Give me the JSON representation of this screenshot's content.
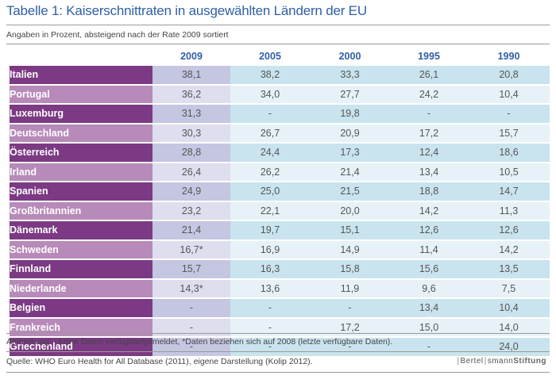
{
  "title": "Tabelle 1: Kaiserschnittraten in ausgewählten Ländern der EU",
  "subtitle": "Angaben in Prozent, absteigend nach der Rate 2009 sortiert",
  "note": "Anmerkung: - keine Daten verfügbar/gemeldet, *Daten beziehen sich auf 2008 (letzte verfügbare Daten).",
  "source": "Quelle: WHO Euro Health for All Database (2011), eigene Darstellung (Kolip 2012).",
  "brand": {
    "part1": "Bertel",
    "part2": "smann",
    "part3": "Stiftung"
  },
  "colors": {
    "title": "#2f5fa5",
    "country_dark": "#7b3a83",
    "country_light": "#b78ab9",
    "col2009_dark": "#c5c6e2",
    "col2009_light": "#dedeef",
    "row_dark": "#c9e4ee",
    "row_light": "#e6f2f7"
  },
  "chart_data": {
    "type": "table",
    "columns": [
      "2009",
      "2005",
      "2000",
      "1995",
      "1990"
    ],
    "rows": [
      {
        "country": "Italien",
        "values": [
          "38,1",
          "38,2",
          "33,3",
          "26,1",
          "20,8"
        ]
      },
      {
        "country": "Portugal",
        "values": [
          "36,2",
          "34,0",
          "27,7",
          "24,2",
          "10,4"
        ]
      },
      {
        "country": "Luxemburg",
        "values": [
          "31,3",
          "-",
          "19,8",
          "-",
          "-"
        ]
      },
      {
        "country": "Deutschland",
        "values": [
          "30,3",
          "26,7",
          "20,9",
          "17,2",
          "15,7"
        ]
      },
      {
        "country": "Österreich",
        "values": [
          "28,8",
          "24,4",
          "17,3",
          "12,4",
          "18,6"
        ]
      },
      {
        "country": "Irland",
        "values": [
          "26,4",
          "26,2",
          "21,4",
          "13,4",
          "10,5"
        ]
      },
      {
        "country": "Spanien",
        "values": [
          "24,9",
          "25,0",
          "21,5",
          "18,8",
          "14,7"
        ]
      },
      {
        "country": "Großbritannien",
        "values": [
          "23,2",
          "22,1",
          "20,0",
          "14,2",
          "11,3"
        ]
      },
      {
        "country": "Dänemark",
        "values": [
          "21,4",
          "19,7",
          "15,1",
          "12,6",
          "12,6"
        ]
      },
      {
        "country": "Schweden",
        "values": [
          "16,7*",
          "16,9",
          "14,9",
          "11,4",
          "14,2"
        ]
      },
      {
        "country": "Finnland",
        "values": [
          "15,7",
          "16,3",
          "15,8",
          "15,6",
          "13,5"
        ]
      },
      {
        "country": "Niederlande",
        "values": [
          "14,3*",
          "13,6",
          "11,9",
          "9,6",
          "7,5"
        ]
      },
      {
        "country": "Belgien",
        "values": [
          "-",
          "-",
          "-",
          "13,4",
          "10,4"
        ]
      },
      {
        "country": "Frankreich",
        "values": [
          "-",
          "-",
          "17,2",
          "15,0",
          "14,0"
        ]
      },
      {
        "country": "Griechenland",
        "values": [
          "-",
          "-",
          "-",
          "-",
          "24,0"
        ]
      }
    ]
  }
}
